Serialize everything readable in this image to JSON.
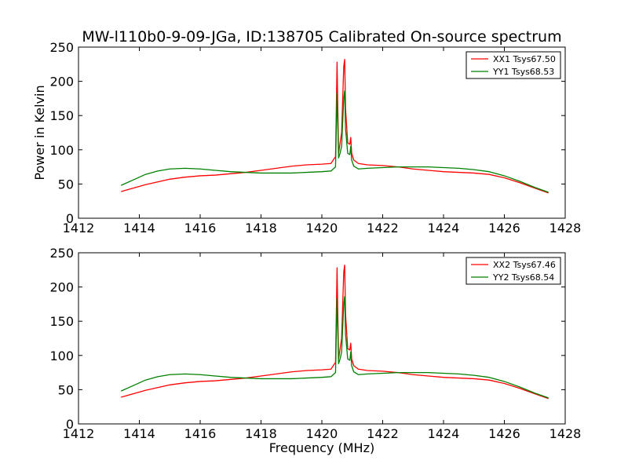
{
  "figure": {
    "title": "MW-l110b0-9-09-JGa, ID:138705 Calibrated On-source spectrum"
  },
  "chart_data": [
    {
      "type": "line",
      "title": "MW-l110b0-9-09-JGa, ID:138705 Calibrated On-source spectrum",
      "xlabel": "",
      "ylabel": "Power in Kelvin",
      "xlim": [
        1412,
        1428
      ],
      "ylim": [
        0,
        250
      ],
      "xticks": [
        1412,
        1414,
        1416,
        1418,
        1420,
        1422,
        1424,
        1426,
        1428
      ],
      "yticks": [
        0,
        50,
        100,
        150,
        200,
        250
      ],
      "grid": false,
      "legend_position": "top-right",
      "series": [
        {
          "name": "XX1 Tsys67.50",
          "color": "#ff0000",
          "x": [
            1413.4,
            1413.8,
            1414.2,
            1414.6,
            1415.0,
            1415.5,
            1416.0,
            1416.5,
            1417.0,
            1417.5,
            1418.0,
            1418.5,
            1419.0,
            1419.5,
            1420.0,
            1420.3,
            1420.45,
            1420.5,
            1420.55,
            1420.6,
            1420.65,
            1420.72,
            1420.75,
            1420.78,
            1420.85,
            1420.92,
            1420.95,
            1420.98,
            1421.05,
            1421.2,
            1421.5,
            1422.0,
            1422.5,
            1423.0,
            1423.5,
            1424.0,
            1424.5,
            1425.0,
            1425.5,
            1426.0,
            1426.5,
            1427.0,
            1427.45
          ],
          "values": [
            39,
            44,
            49,
            53,
            57,
            60,
            62,
            63,
            65,
            67,
            70,
            73,
            76,
            78,
            79,
            80,
            90,
            228,
            95,
            110,
            125,
            222,
            232,
            160,
            110,
            108,
            118,
            95,
            85,
            80,
            78,
            77,
            75,
            72,
            70,
            68,
            67,
            66,
            64,
            59,
            52,
            44,
            37
          ]
        },
        {
          "name": "YY1 Tsys68.53",
          "color": "#008000",
          "x": [
            1413.4,
            1413.8,
            1414.2,
            1414.6,
            1415.0,
            1415.5,
            1416.0,
            1416.5,
            1417.0,
            1417.5,
            1418.0,
            1418.5,
            1419.0,
            1419.5,
            1420.0,
            1420.3,
            1420.45,
            1420.5,
            1420.55,
            1420.6,
            1420.65,
            1420.72,
            1420.75,
            1420.78,
            1420.85,
            1420.92,
            1420.95,
            1420.98,
            1421.05,
            1421.2,
            1421.5,
            1422.0,
            1422.5,
            1423.0,
            1423.5,
            1424.0,
            1424.5,
            1425.0,
            1425.5,
            1426.0,
            1426.5,
            1427.0,
            1427.45
          ],
          "values": [
            48,
            56,
            64,
            69,
            72,
            73,
            72,
            70,
            68,
            67,
            66,
            66,
            66,
            67,
            68,
            69,
            75,
            183,
            88,
            95,
            105,
            175,
            186,
            130,
            95,
            93,
            105,
            85,
            76,
            72,
            73,
            74,
            75,
            75,
            75,
            74,
            73,
            71,
            68,
            62,
            54,
            45,
            38
          ]
        }
      ]
    },
    {
      "type": "line",
      "title": "",
      "xlabel": "Frequency (MHz)",
      "ylabel": "",
      "xlim": [
        1412,
        1428
      ],
      "ylim": [
        0,
        250
      ],
      "xticks": [
        1412,
        1414,
        1416,
        1418,
        1420,
        1422,
        1424,
        1426,
        1428
      ],
      "yticks": [
        0,
        50,
        100,
        150,
        200,
        250
      ],
      "grid": false,
      "legend_position": "top-right",
      "series": [
        {
          "name": "XX2 Tsys67.46",
          "color": "#ff0000",
          "x": [
            1413.4,
            1413.8,
            1414.2,
            1414.6,
            1415.0,
            1415.5,
            1416.0,
            1416.5,
            1417.0,
            1417.5,
            1418.0,
            1418.5,
            1419.0,
            1419.5,
            1420.0,
            1420.3,
            1420.45,
            1420.5,
            1420.55,
            1420.6,
            1420.65,
            1420.72,
            1420.75,
            1420.78,
            1420.85,
            1420.92,
            1420.95,
            1420.98,
            1421.05,
            1421.2,
            1421.5,
            1422.0,
            1422.5,
            1423.0,
            1423.5,
            1424.0,
            1424.5,
            1425.0,
            1425.5,
            1426.0,
            1426.5,
            1427.0,
            1427.45
          ],
          "values": [
            39,
            44,
            49,
            53,
            57,
            60,
            62,
            63,
            65,
            67,
            70,
            73,
            76,
            78,
            79,
            80,
            90,
            228,
            95,
            110,
            125,
            222,
            232,
            160,
            110,
            108,
            118,
            95,
            85,
            80,
            78,
            77,
            75,
            72,
            70,
            68,
            67,
            66,
            64,
            59,
            52,
            44,
            37
          ]
        },
        {
          "name": "YY2 Tsys68.54",
          "color": "#008000",
          "x": [
            1413.4,
            1413.8,
            1414.2,
            1414.6,
            1415.0,
            1415.5,
            1416.0,
            1416.5,
            1417.0,
            1417.5,
            1418.0,
            1418.5,
            1419.0,
            1419.5,
            1420.0,
            1420.3,
            1420.45,
            1420.5,
            1420.55,
            1420.6,
            1420.65,
            1420.72,
            1420.75,
            1420.78,
            1420.85,
            1420.92,
            1420.95,
            1420.98,
            1421.05,
            1421.2,
            1421.5,
            1422.0,
            1422.5,
            1423.0,
            1423.5,
            1424.0,
            1424.5,
            1425.0,
            1425.5,
            1426.0,
            1426.5,
            1427.0,
            1427.45
          ],
          "values": [
            48,
            56,
            64,
            69,
            72,
            73,
            72,
            70,
            68,
            67,
            66,
            66,
            66,
            67,
            68,
            69,
            75,
            183,
            88,
            95,
            105,
            175,
            186,
            130,
            95,
            93,
            105,
            85,
            76,
            72,
            73,
            74,
            75,
            75,
            75,
            74,
            73,
            71,
            68,
            62,
            54,
            45,
            38
          ]
        }
      ]
    }
  ]
}
